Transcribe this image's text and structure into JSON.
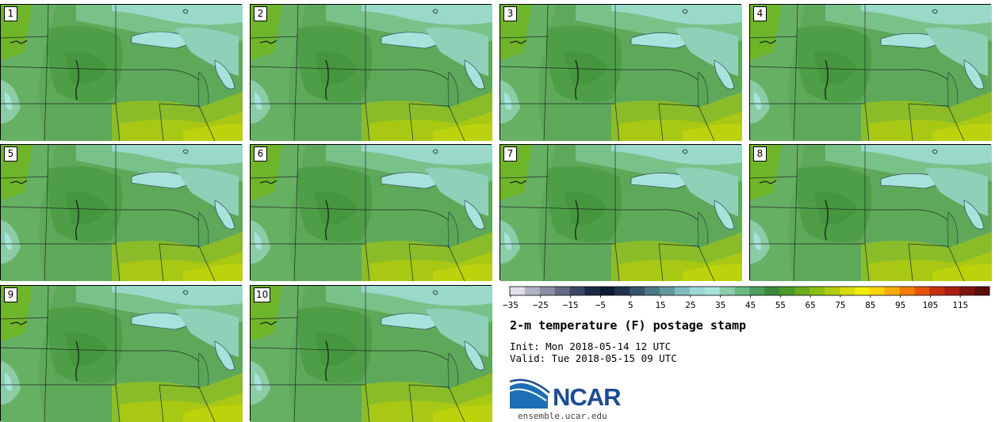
{
  "panels": [
    {
      "label": "1"
    },
    {
      "label": "2"
    },
    {
      "label": "3"
    },
    {
      "label": "4"
    },
    {
      "label": "5"
    },
    {
      "label": "6"
    },
    {
      "label": "7"
    },
    {
      "label": "8"
    },
    {
      "label": "9"
    },
    {
      "label": "10"
    }
  ],
  "legend": {
    "ticks": [
      "−35",
      "−25",
      "−15",
      "−5",
      "5",
      "15",
      "25",
      "35",
      "45",
      "55",
      "65",
      "75",
      "85",
      "95",
      "105",
      "115"
    ],
    "colors": [
      "#e0e0ea",
      "#b2b4c4",
      "#8a8ea4",
      "#646a84",
      "#3a4664",
      "#1a2846",
      "#0e1a32",
      "#203450",
      "#34546c",
      "#4a7884",
      "#62989c",
      "#80bcbc",
      "#9ad8d6",
      "#a8e2dc",
      "#8ccca8",
      "#6ab882",
      "#4ca05c",
      "#3a8a3c",
      "#4c9a28",
      "#6cac1c",
      "#8cbc14",
      "#b0cc0c",
      "#d4dc04",
      "#f0ec00",
      "#fcd400",
      "#fcac00",
      "#f47e08",
      "#e4540c",
      "#c83010",
      "#a81e10",
      "#80140c",
      "#5c0e08"
    ],
    "colors_note": "color ramp for 2-m temperature"
  },
  "title": "2-m temperature (F) postage stamp",
  "init": "Init: Mon 2018-05-14 12 UTC",
  "valid": "Valid: Tue 2018-05-15 09 UTC",
  "logo": {
    "text": "NCAR",
    "url": "ensemble.ucar.edu"
  },
  "colors": {
    "light_green": "#6cb86c",
    "mid_green": "#5aa64a",
    "dark_green": "#4c9a3c",
    "yellow_green": "#9cc21c",
    "lime": "#b8d010",
    "pale_teal": "#9ad8c0",
    "lake_blue": "#a8e2e0",
    "brand": "#1c4b93"
  }
}
